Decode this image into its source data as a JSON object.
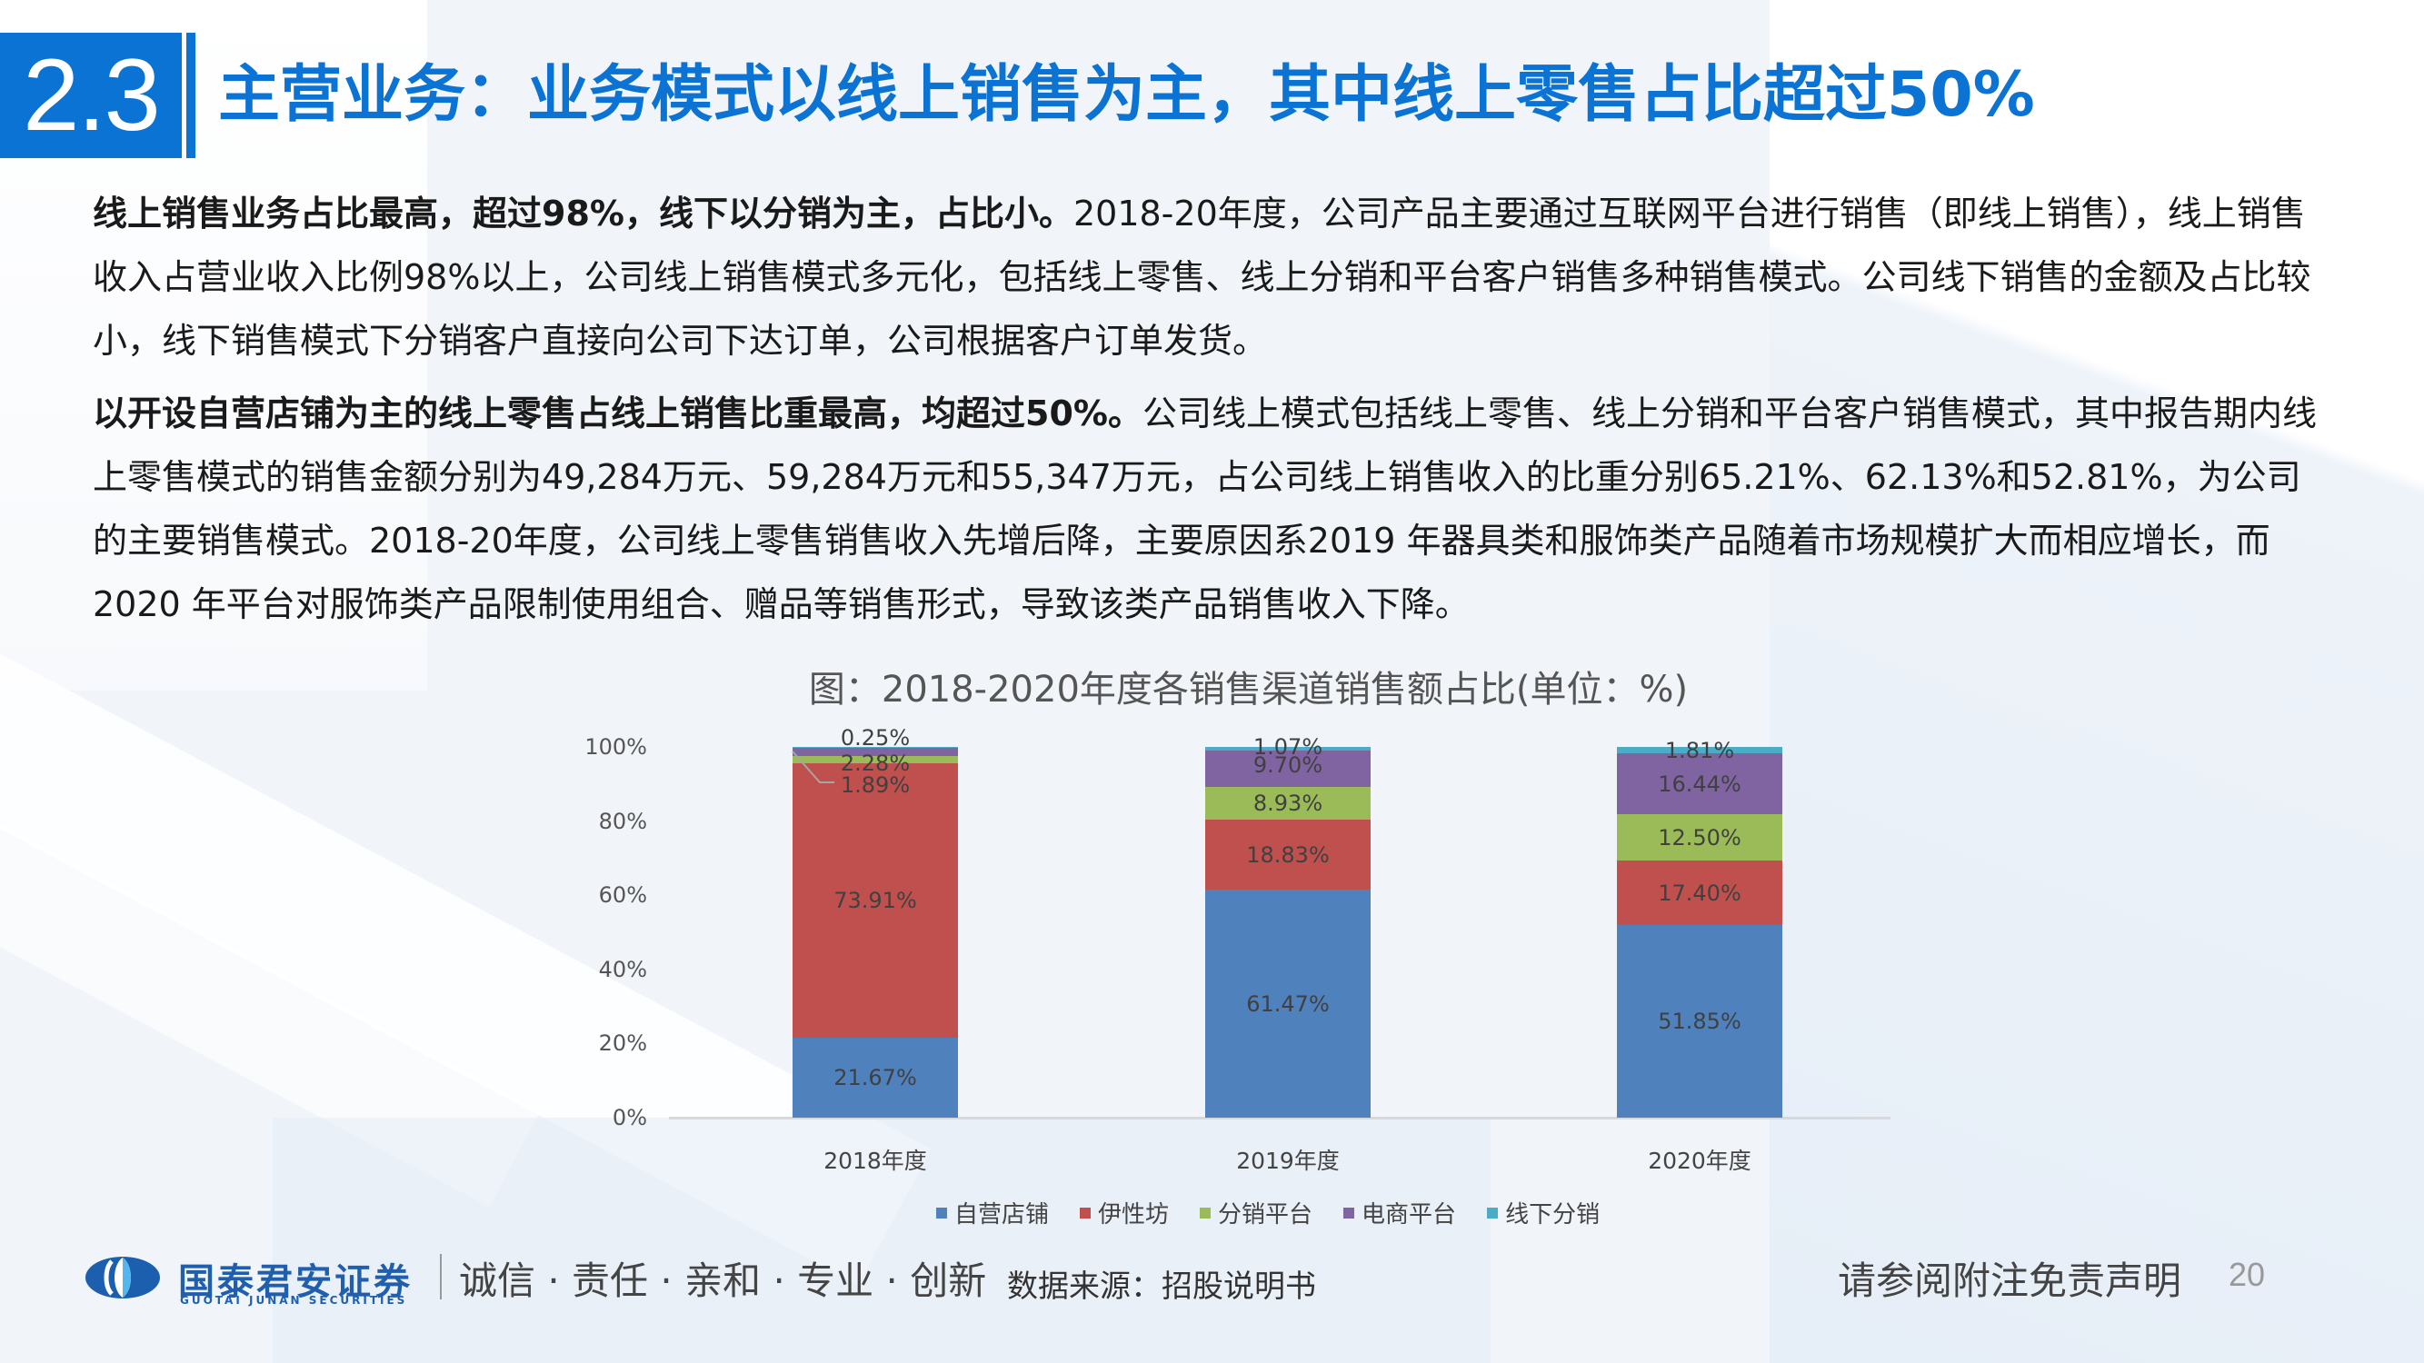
{
  "header": {
    "section_number": "2.3",
    "title": "主营业务：业务模式以线上销售为主，其中线上零售占比超过50%"
  },
  "body": {
    "paragraphs": [
      {
        "lead": "线上销售业务占比最高，超过98%，线下以分销为主，占比小。",
        "text": "2018-20年度，公司产品主要通过互联网平台进行销售（即线上销售），线上销售收入占营业收入比例98%以上，公司线上销售模式多元化，包括线上零售、线上分销和平台客户销售多种销售模式。公司线下销售的金额及占比较小，线下销售模式下分销客户直接向公司下达订单，公司根据客户订单发货。"
      },
      {
        "lead": "以开设自营店铺为主的线上零售占线上销售比重最高，均超过50%。",
        "text": "公司线上模式包括线上零售、线上分销和平台客户销售模式，其中报告期内线上零售模式的销售金额分别为49,284万元、59,284万元和55,347万元，占公司线上销售收入的比重分别65.21%、62.13%和52.81%，为公司的主要销售模式。2018-20年度，公司线上零售销售收入先增后降，主要原因系2019 年器具类和服饰类产品随着市场规模扩大而相应增长，而2020 年平台对服饰类产品限制使用组合、赠品等销售形式，导致该类产品销售收入下降。"
      }
    ]
  },
  "chart_data": {
    "type": "bar",
    "stacked": true,
    "title": "图：2018-2020年度各销售渠道销售额占比(单位：%)",
    "categories": [
      "2018年度",
      "2019年度",
      "2020年度"
    ],
    "series": [
      {
        "name": "自营店铺",
        "color": "#4f81bd",
        "values": [
          21.67,
          61.47,
          51.85
        ]
      },
      {
        "name": "伊性坊",
        "color": "#c0504d",
        "values": [
          73.91,
          18.83,
          17.4
        ]
      },
      {
        "name": "分销平台",
        "color": "#9bbb59",
        "values": [
          1.89,
          8.93,
          12.5
        ]
      },
      {
        "name": "电商平台",
        "color": "#8064a2",
        "values": [
          2.28,
          9.7,
          16.44
        ]
      },
      {
        "name": "线下分销",
        "color": "#4bacc6",
        "values": [
          0.25,
          1.07,
          1.81
        ]
      }
    ],
    "labels": [
      [
        "21.67%",
        "73.91%",
        "1.89%",
        "2.28%",
        "0.25%"
      ],
      [
        "61.47%",
        "18.83%",
        "8.93%",
        "9.70%",
        "1.07%"
      ],
      [
        "51.85%",
        "17.40%",
        "12.50%",
        "16.44%",
        "1.81%"
      ]
    ],
    "yticks": [
      "0%",
      "20%",
      "40%",
      "60%",
      "80%",
      "100%"
    ],
    "ylim": [
      0,
      100
    ],
    "xlabel": "",
    "ylabel": "",
    "grid": false,
    "legend_position": "bottom"
  },
  "footer": {
    "company_cn": "国泰君安证券",
    "company_en": "GUOTAI JUNAN SECURITIES",
    "motto": "诚信 · 责任 · 亲和 · 专业 · 创新",
    "source": "数据来源：招股说明书",
    "disclaimer": "请参阅附注免责声明",
    "page_number": "20"
  }
}
